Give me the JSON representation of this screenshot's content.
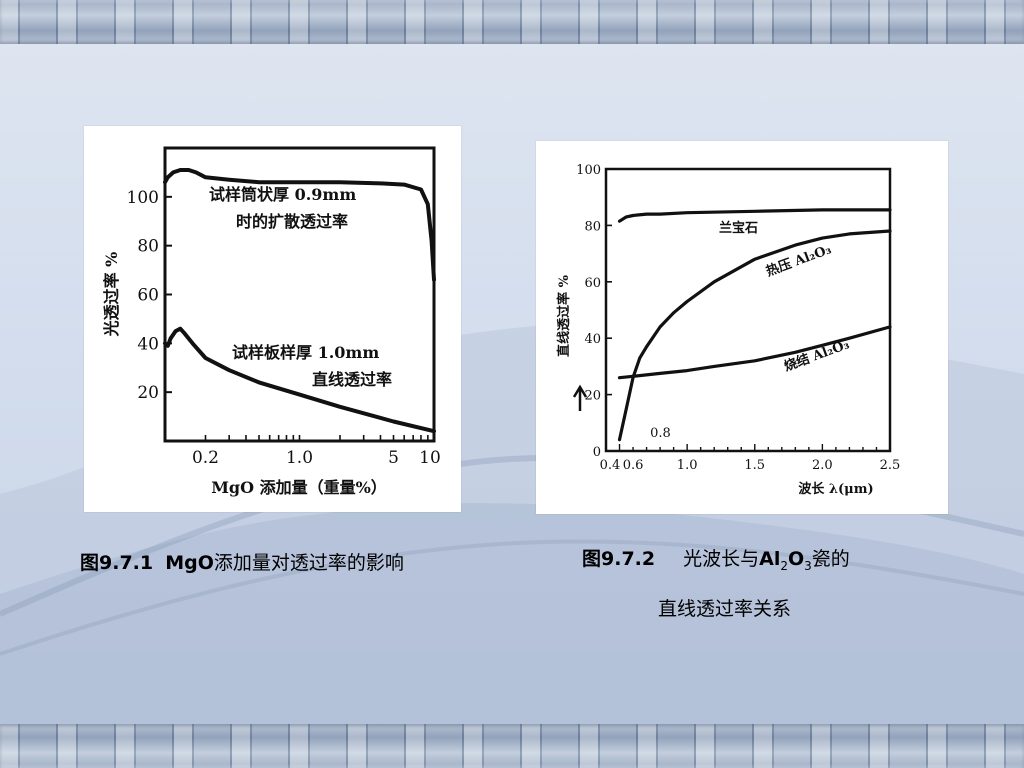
{
  "colors": {
    "ink": "#111111",
    "panel": "#ffffff"
  },
  "captions": {
    "fig1_number": "图9.7.1",
    "fig1_mgo": "MgO",
    "fig1_rest": "添加量对透过率的影响",
    "fig2_number": "图9.7.2",
    "fig2_pre": "光波长与",
    "fig2_al": "Al",
    "fig2_sub2": "2",
    "fig2_o": "O",
    "fig2_sub3": "3",
    "fig2_post": "瓷的",
    "fig2_line2": "直线透过率关系"
  },
  "chart_data": [
    {
      "type": "line",
      "xlabel": "MgO 添加量（重量%）",
      "ylabel": "光透过率 %",
      "x_scale": "log",
      "xlim": [
        0.1,
        10
      ],
      "ylim": [
        0,
        120
      ],
      "yticks": [
        20,
        40,
        60,
        80,
        100
      ],
      "xtick_labels": [
        {
          "value": 0.2,
          "label": "0.2"
        },
        {
          "value": 1.0,
          "label": "1.0"
        },
        {
          "value": 5,
          "label": "5"
        },
        {
          "value": 10,
          "label": "10"
        }
      ],
      "series": [
        {
          "x": [
            0.1,
            0.105,
            0.115,
            0.13,
            0.15,
            0.17,
            0.2,
            0.3,
            0.5,
            1.0,
            2.0,
            4.0,
            6.0,
            8.0,
            9.0,
            9.6,
            10.0
          ],
          "y": [
            106,
            108,
            110,
            111,
            111,
            110,
            108,
            107,
            106,
            106,
            106,
            105.5,
            105,
            103,
            97,
            82,
            66
          ]
        },
        {
          "x": [
            0.1,
            0.105,
            0.11,
            0.12,
            0.13,
            0.14,
            0.16,
            0.2,
            0.3,
            0.5,
            1.0,
            2.0,
            5.0,
            10.0
          ],
          "y": [
            40,
            39,
            42,
            45,
            46,
            44,
            40,
            34,
            29,
            24,
            19,
            14,
            8,
            4
          ]
        }
      ],
      "annotations": [
        {
          "line1": "试样筒状厚 0.9mm",
          "line2": "时的扩散透过率"
        },
        {
          "line1": "试样板样厚 1.0mm",
          "line2": "直线透过率"
        }
      ]
    },
    {
      "type": "line",
      "xlabel": "波长 λ(μm)",
      "ylabel": "直线透过率 %",
      "xlim": [
        0.4,
        2.5
      ],
      "ylim": [
        0,
        100
      ],
      "yticks": [
        0,
        20,
        40,
        60,
        80,
        100
      ],
      "xtick_labels": [
        {
          "value": 0.4,
          "label": "0.4"
        },
        {
          "value": 0.6,
          "label": "0.6"
        },
        {
          "value": 1.0,
          "label": "1.0"
        },
        {
          "value": 1.5,
          "label": "1.5"
        },
        {
          "value": 2.0,
          "label": "2.0"
        },
        {
          "value": 2.5,
          "label": "2.5"
        }
      ],
      "series": [
        {
          "name": "兰宝石",
          "x": [
            0.5,
            0.55,
            0.6,
            0.7,
            0.8,
            1.0,
            1.5,
            2.0,
            2.5
          ],
          "y": [
            81.5,
            83,
            83.5,
            84,
            84,
            84.5,
            85,
            85.5,
            85.5
          ]
        },
        {
          "name": "热压 Al₂O₃",
          "x": [
            0.5,
            0.55,
            0.6,
            0.65,
            0.7,
            0.8,
            0.9,
            1.0,
            1.2,
            1.5,
            1.8,
            2.0,
            2.2,
            2.5
          ],
          "y": [
            4,
            15,
            26,
            33,
            37,
            44,
            49,
            53,
            60,
            68,
            73,
            75.5,
            77,
            78
          ]
        },
        {
          "name": "烧结 Al₂O₃",
          "x": [
            0.5,
            0.6,
            0.8,
            1.0,
            1.2,
            1.5,
            1.8,
            2.0,
            2.2,
            2.5
          ],
          "y": [
            26,
            26.5,
            27.5,
            28.5,
            30,
            32,
            35,
            37.5,
            40,
            44
          ]
        }
      ],
      "annotations": [
        {
          "label": "0.8",
          "x": 0.8,
          "y": 5
        }
      ]
    }
  ]
}
